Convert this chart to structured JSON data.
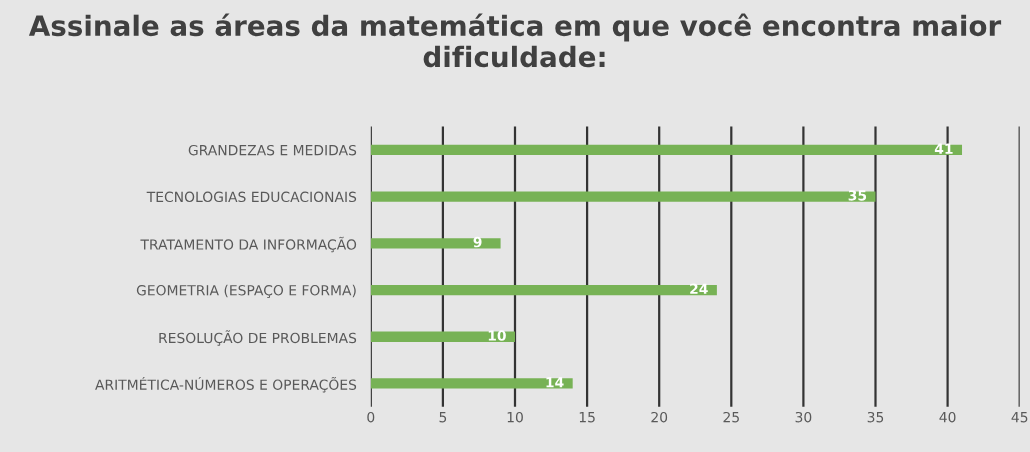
{
  "chart_data": {
    "type": "bar",
    "orientation": "horizontal",
    "title": "Assinale as áreas da matemática em que você encontra maior dificuldade:",
    "categories": [
      "GRANDEZAS E MEDIDAS",
      "TECNOLOGIAS EDUCACIONAIS",
      "TRATAMENTO DA INFORMAÇÃO",
      "GEOMETRIA (ESPAÇO E FORMA)",
      "RESOLUÇÃO DE PROBLEMAS",
      "ARITMÉTICA-NÚMEROS E OPERAÇÕES"
    ],
    "values": [
      41,
      35,
      9,
      24,
      10,
      14
    ],
    "color": "#77b255",
    "xlim": [
      0,
      45
    ],
    "xticks": [
      0,
      5,
      10,
      15,
      20,
      25,
      30,
      35,
      40,
      45
    ],
    "grid": "x",
    "data_labels": true
  }
}
